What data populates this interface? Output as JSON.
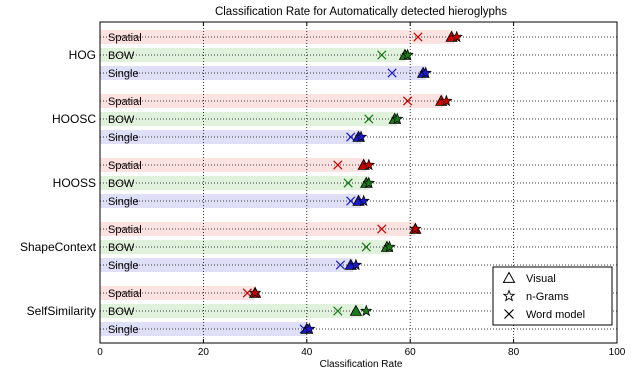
{
  "chart_data": {
    "type": "bar",
    "orientation": "horizontal",
    "title": "Classification Rate for Automatically detected hieroglyphs",
    "xlabel": "Classification Rate",
    "ylabel": "",
    "xlim": [
      0,
      100
    ],
    "xticks": [
      0,
      20,
      40,
      60,
      80,
      100
    ],
    "grid": true,
    "legend_placement": "bottom-right",
    "conditions": [
      "Spatial",
      "BOW",
      "Single"
    ],
    "condition_colors": {
      "Spatial": "#fde2e2",
      "BOW": "#e0f1dc",
      "Single": "#dfe0f7"
    },
    "marker_colors": {
      "Spatial": "#cc0000",
      "BOW": "#1a7a1a",
      "Single": "#1a1acc"
    },
    "legend": [
      {
        "marker": "triangle",
        "label": "Visual"
      },
      {
        "marker": "star",
        "label": "n-Grams"
      },
      {
        "marker": "x",
        "label": "Word model"
      }
    ],
    "groups": [
      {
        "name": "HOG",
        "rows": [
          {
            "condition": "Spatial",
            "bar": 68.5,
            "visual": 68.0,
            "ngrams": 69.0,
            "word": 61.5
          },
          {
            "condition": "BOW",
            "bar": 59.0,
            "visual": 59.0,
            "ngrams": 59.5,
            "word": 54.5
          },
          {
            "condition": "Single",
            "bar": 63.0,
            "visual": 62.5,
            "ngrams": 63.0,
            "word": 56.5
          }
        ]
      },
      {
        "name": "HOOSC",
        "rows": [
          {
            "condition": "Spatial",
            "bar": 66.5,
            "visual": 66.0,
            "ngrams": 67.0,
            "word": 59.5
          },
          {
            "condition": "BOW",
            "bar": 57.5,
            "visual": 57.0,
            "ngrams": 57.5,
            "word": 52.0
          },
          {
            "condition": "Single",
            "bar": 50.5,
            "visual": 50.0,
            "ngrams": 50.5,
            "word": 48.5
          }
        ]
      },
      {
        "name": "HOOSS",
        "rows": [
          {
            "condition": "Spatial",
            "bar": 51.5,
            "visual": 51.0,
            "ngrams": 52.0,
            "word": 46.0
          },
          {
            "condition": "BOW",
            "bar": 52.0,
            "visual": 51.5,
            "ngrams": 52.0,
            "word": 48.0
          },
          {
            "condition": "Single",
            "bar": 50.5,
            "visual": 50.0,
            "ngrams": 51.0,
            "word": 48.5
          }
        ]
      },
      {
        "name": "ShapeContext",
        "rows": [
          {
            "condition": "Spatial",
            "bar": 61.0,
            "visual": 61.0,
            "ngrams": 61.0,
            "word": 54.5
          },
          {
            "condition": "BOW",
            "bar": 56.0,
            "visual": 55.5,
            "ngrams": 56.0,
            "word": 51.5
          },
          {
            "condition": "Single",
            "bar": 49.0,
            "visual": 48.5,
            "ngrams": 49.5,
            "word": 46.5
          }
        ]
      },
      {
        "name": "SelfSimilarity",
        "rows": [
          {
            "condition": "Spatial",
            "bar": 30.0,
            "visual": 30.0,
            "ngrams": 30.0,
            "word": 28.5
          },
          {
            "condition": "BOW",
            "bar": 51.0,
            "visual": 49.5,
            "ngrams": 51.5,
            "word": 46.0
          },
          {
            "condition": "Single",
            "bar": 40.0,
            "visual": 40.0,
            "ngrams": 40.5,
            "word": 39.5
          }
        ]
      }
    ]
  }
}
